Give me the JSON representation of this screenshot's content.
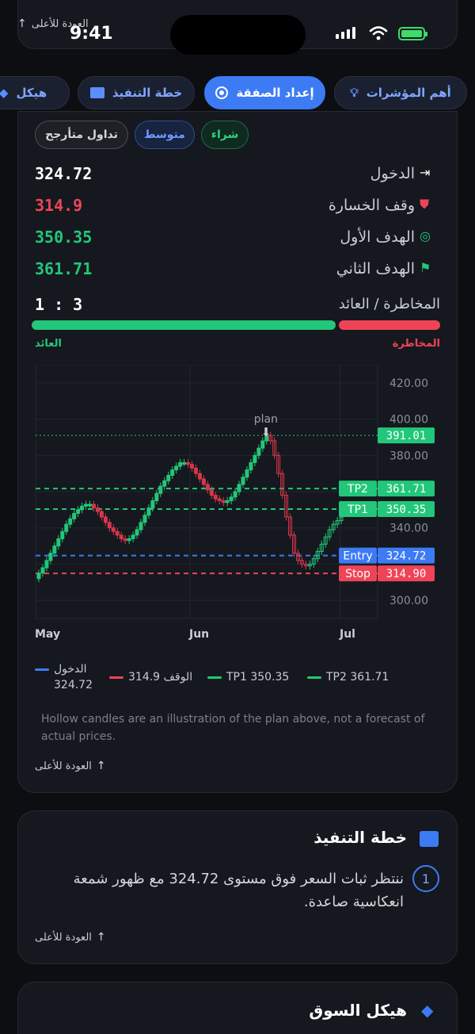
{
  "status": {
    "time": "9:41",
    "top_back": "العودة للأعلى"
  },
  "tabs": [
    {
      "label": "أهم المؤشرات",
      "icon": "lightbulb-icon"
    },
    {
      "label": "إعداد الصفقة",
      "icon": "target-icon",
      "active": true
    },
    {
      "label": "خطة التنفيذ",
      "icon": "list-icon"
    },
    {
      "label": "هيكل",
      "icon": "layers-icon"
    }
  ],
  "chips": {
    "buy": "شراء",
    "medium": "متوسط",
    "swing": "تداول متأرجح"
  },
  "levels": [
    {
      "label": "الدخول",
      "value": "324.72",
      "color": "#ffffff",
      "icon": "entry-arrow-icon"
    },
    {
      "label": "وقف الخسارة",
      "value": "314.9",
      "color": "#ef4457",
      "icon": "shield-icon"
    },
    {
      "label": "الهدف الأول",
      "value": "350.35",
      "color": "#22c77a",
      "icon": "target-icon"
    },
    {
      "label": "الهدف الثاني",
      "value": "361.71",
      "color": "#22c77a",
      "icon": "flag-icon"
    }
  ],
  "risk_reward": {
    "label": "المخاطرة / العائد",
    "value": "1 : 3",
    "reward_label": "العائد",
    "risk_label": "المخاطرة",
    "reward_fraction": 0.75
  },
  "chart_data": {
    "type": "candlestick",
    "x_ticks": [
      "May",
      "Jun",
      "Jul"
    ],
    "y_ticks": [
      "420.00",
      "400.00",
      "380.00",
      "340.00",
      "300.00"
    ],
    "ylim": [
      290,
      430
    ],
    "annotation": "plan",
    "price_tags": [
      {
        "value": 391.01,
        "text": "391.01",
        "color": "#22c77a"
      },
      {
        "value": 361.71,
        "text": "361.71",
        "label": "TP2",
        "color": "#22c77a"
      },
      {
        "value": 350.35,
        "text": "350.35",
        "label": "TP1",
        "color": "#22c77a"
      },
      {
        "value": 324.72,
        "text": "324.72",
        "label": "Entry",
        "color": "#3d7bf5"
      },
      {
        "value": 314.9,
        "text": "314.90",
        "label": "Stop",
        "color": "#ef4457"
      }
    ],
    "closes": [
      315,
      318,
      322,
      326,
      330,
      334,
      338,
      342,
      345,
      348,
      350,
      352,
      353,
      353,
      351,
      349,
      346,
      343,
      340,
      338,
      336,
      334,
      333,
      334,
      336,
      339,
      343,
      347,
      351,
      355,
      359,
      363,
      366,
      369,
      372,
      374,
      376,
      376,
      375,
      373,
      370,
      367,
      364,
      361,
      358,
      356,
      355,
      354,
      355,
      357,
      360,
      364,
      368,
      372,
      376,
      380,
      384,
      388,
      391,
      388,
      380,
      370,
      358,
      346,
      336,
      326,
      322,
      320,
      319,
      320,
      323,
      327,
      331,
      335,
      339,
      342,
      344,
      346
    ]
  },
  "legend": [
    {
      "label": "الدخول",
      "value": "324.72",
      "color": "#3d7bf5"
    },
    {
      "text": "الوقف 314.9",
      "color": "#ef4457"
    },
    {
      "text": "TP1 350.35",
      "color": "#22c77a"
    },
    {
      "text": "TP2 361.71",
      "color": "#22c77a"
    }
  ],
  "disclaimer": "Hollow candles are an illustration of the plan above, not a forecast of actual prices.",
  "back_label": "العودة للأعلى",
  "execution": {
    "title": "خطة التنفيذ",
    "step_number": "1",
    "step_text": "ننتظر ثبات السعر فوق مستوى 324.72 مع ظهور شمعة انعكاسية صاعدة.",
    "back_label": "العودة للأعلى"
  },
  "structure": {
    "title": "هيكل السوق"
  }
}
